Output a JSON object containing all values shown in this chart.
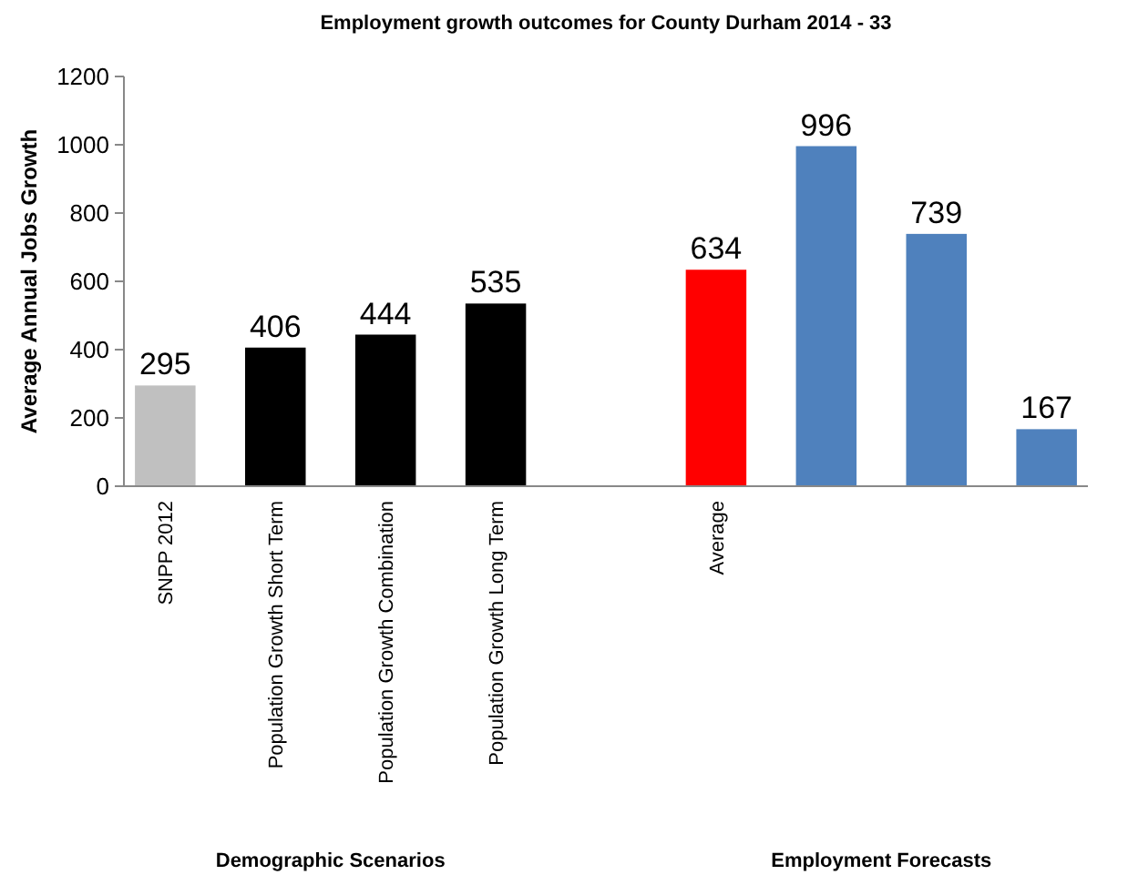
{
  "chart_data": {
    "type": "bar",
    "title": "Employment growth outcomes for County Durham  2014 - 33",
    "ylabel": "Average Annual Jobs Growth",
    "categories": [
      "SNPP 2012",
      "Population Growth Short Term",
      "Population Growth Combination",
      "Population Growth Long Term",
      null,
      "Average",
      null,
      null,
      null
    ],
    "values": [
      295,
      406,
      444,
      535,
      null,
      634,
      996,
      739,
      167
    ],
    "colors": [
      "#c0c0c0",
      "#000000",
      "#000000",
      "#000000",
      null,
      "#ff0000",
      "#4f81bd",
      "#4f81bd",
      "#4f81bd"
    ],
    "ylim": [
      0,
      1200
    ],
    "yticks": [
      0,
      200,
      400,
      600,
      800,
      1000,
      1200
    ],
    "data_labels": true,
    "annotations": [
      "Demographic Scenarios",
      "Employment Forecasts"
    ]
  }
}
